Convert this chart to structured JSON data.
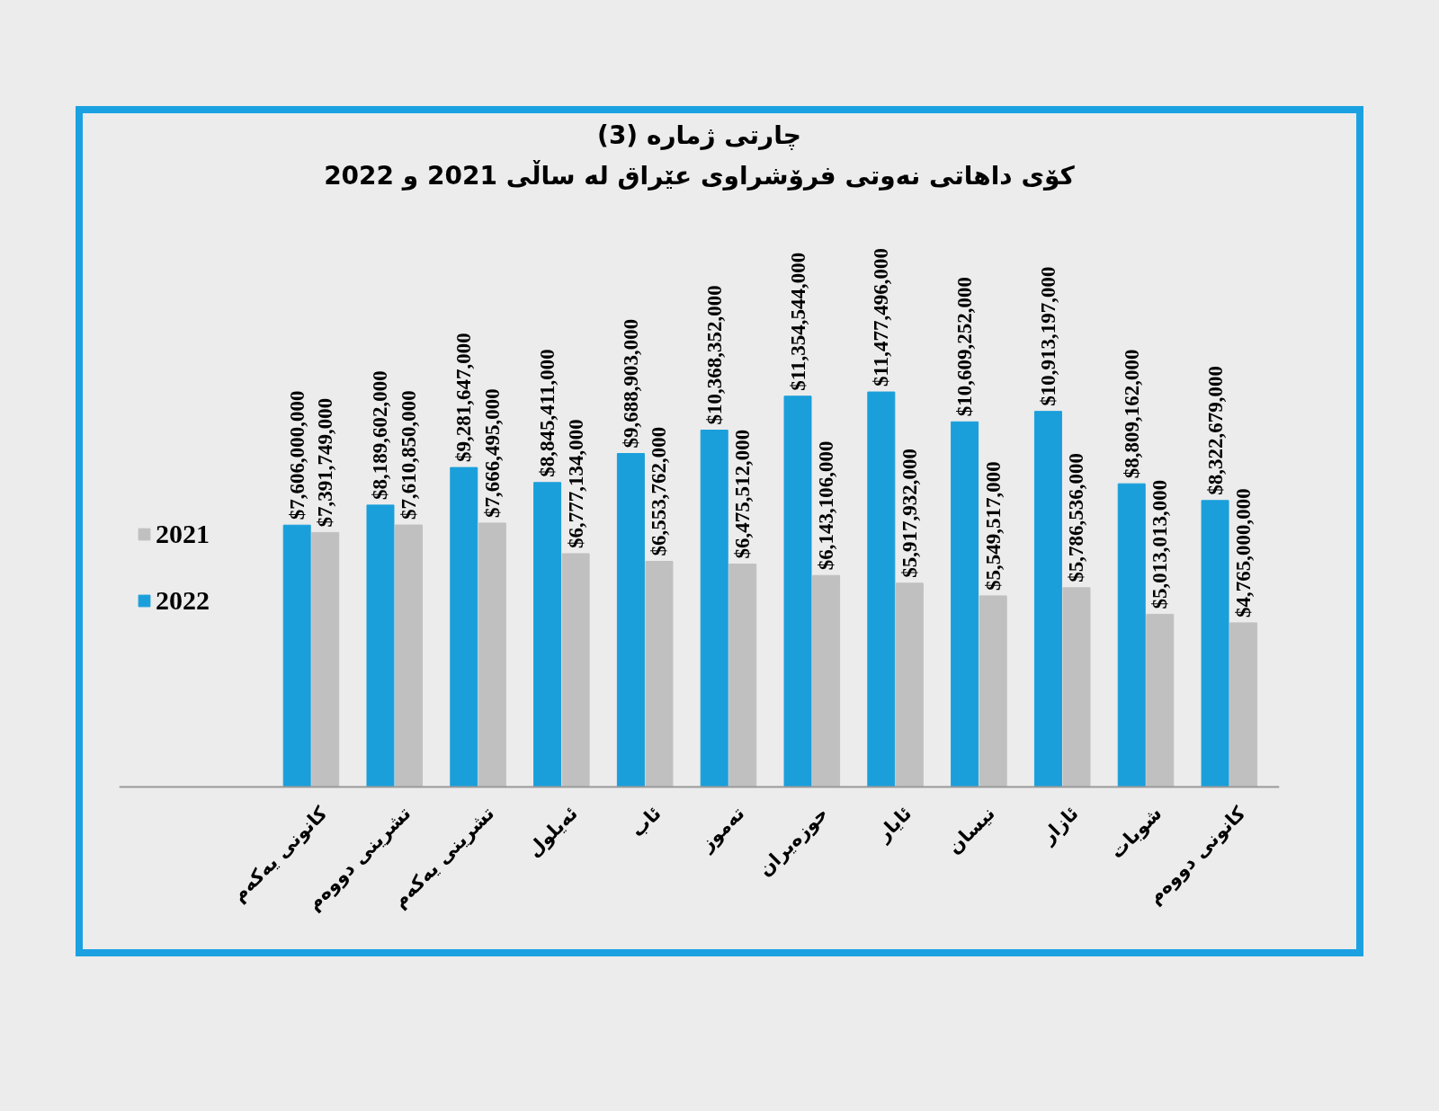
{
  "chart_data": {
    "type": "bar",
    "title": "چارتی ژماره (3)",
    "subtitle": "كۆی داهاتی نەوتی فرۆشراوی عێراق له ساڵی 2021 و 2022",
    "categories": [
      "كانونی یەكەم",
      "تشرینی دووەم",
      "تشرینی یەكەم",
      "ئەیلول",
      "ئاب",
      "تەموز",
      "حوزەیران",
      "ئایار",
      "نیسان",
      "ئازار",
      "شوبات",
      "كانونی دووەم"
    ],
    "series": [
      {
        "name": "2022",
        "color": "#1a9fdb",
        "values": [
          7606000000,
          8189602000,
          9281647000,
          8845411000,
          9688903000,
          10368352000,
          11354544000,
          11477496000,
          10609252000,
          10913197000,
          8809162000,
          8322679000
        ],
        "value_labels": [
          "$7,606,000,000",
          "$8,189,602,000",
          "$9,281,647,000",
          "$8,845,411,000",
          "$9,688,903,000",
          "$10,368,352,000",
          "$11,354,544,000",
          "$11,477,496,000",
          "$10,609,252,000",
          "$10,913,197,000",
          "$8,809,162,000",
          "$8,322,679,000"
        ]
      },
      {
        "name": "2021",
        "color": "#c0c0c0",
        "values": [
          7391749000,
          7610850000,
          7666495000,
          6777134000,
          6553762000,
          6475512000,
          6143106000,
          5917932000,
          5549517000,
          5786536000,
          5013013000,
          4765000000
        ],
        "value_labels": [
          "$7,391,749,000",
          "$7,610,850,000",
          "$7,666,495,000",
          "$6,777,134,000",
          "$6,553,762,000",
          "$6,475,512,000",
          "$6,143,106,000",
          "$5,917,932,000",
          "$5,549,517,000",
          "$5,786,536,000",
          "$5,013,013,000",
          "$4,765,000,000"
        ]
      }
    ],
    "legend": "left",
    "grid": false,
    "tick_labels": "x"
  }
}
